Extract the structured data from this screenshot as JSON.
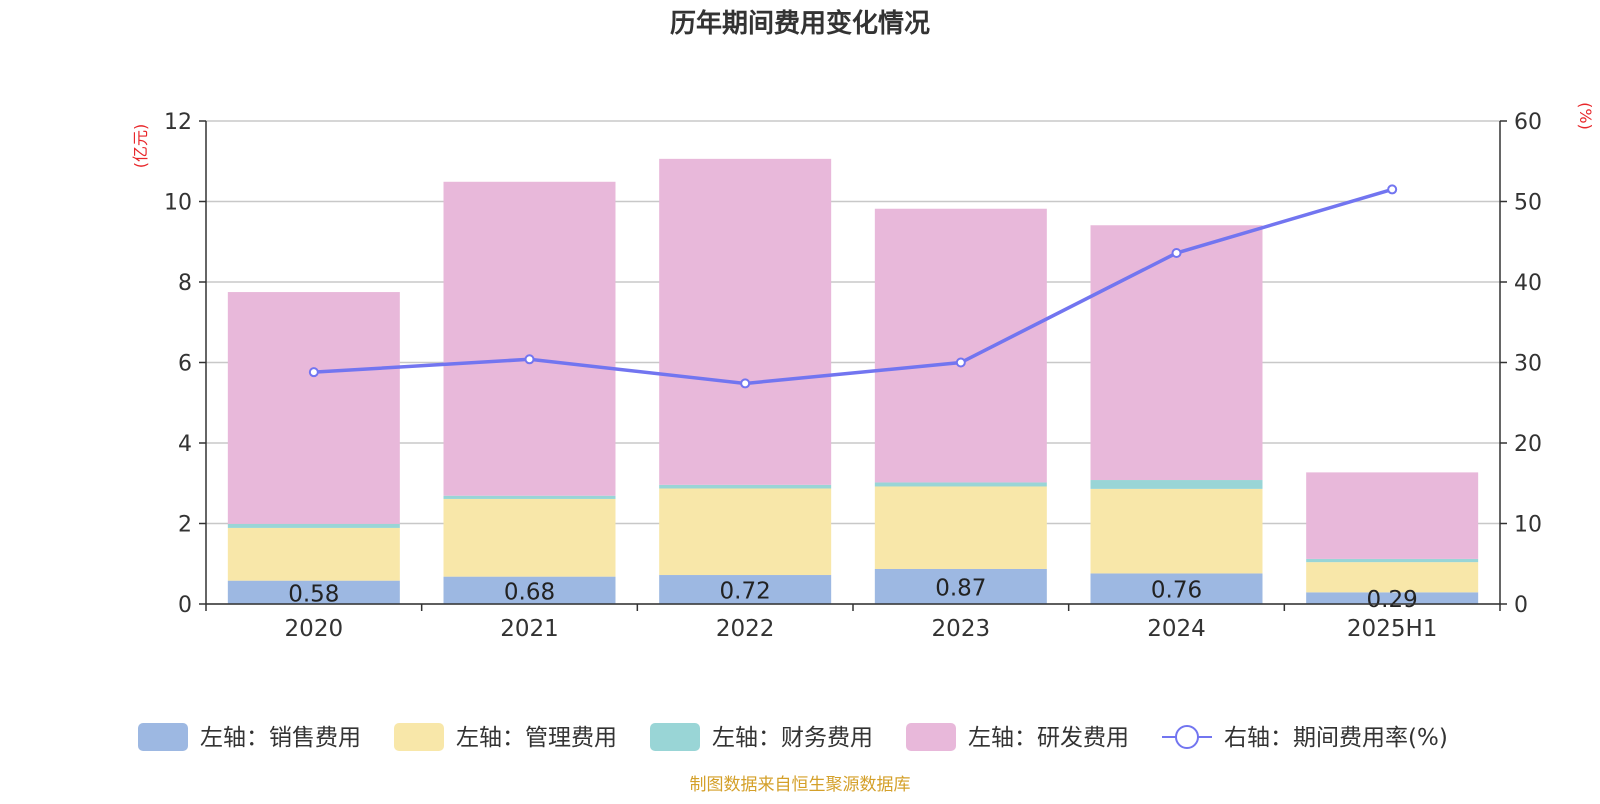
{
  "chart_data": {
    "type": "bar",
    "title": "历年期间费用变化情况",
    "source": "制图数据来自恒生聚源数据库",
    "categories": [
      "2020",
      "2021",
      "2022",
      "2023",
      "2024",
      "2025H1"
    ],
    "left_axis": {
      "unit": "(亿元)",
      "ylim": [
        0,
        12
      ],
      "ticks": [
        "0",
        "2",
        "4",
        "6",
        "8",
        "10",
        "12"
      ]
    },
    "right_axis": {
      "unit": "(%)",
      "ylim": [
        0,
        60
      ],
      "ticks": [
        "0",
        "10",
        "20",
        "30",
        "40",
        "50",
        "60"
      ]
    },
    "grid": true,
    "legend_position": "bottom",
    "series": [
      {
        "name": "左轴：销售费用",
        "axis": "left",
        "kind": "bar",
        "color": "#9db8e2",
        "values": [
          0.58,
          0.68,
          0.72,
          0.87,
          0.76,
          0.29
        ],
        "data_labels": [
          "0.58",
          "0.68",
          "0.72",
          "0.87",
          "0.76",
          "0.29"
        ]
      },
      {
        "name": "左轴：管理费用",
        "axis": "left",
        "kind": "bar",
        "color": "#f8e7a9",
        "values": [
          1.31,
          1.93,
          2.15,
          2.05,
          2.1,
          0.75
        ]
      },
      {
        "name": "左轴：财务费用",
        "axis": "left",
        "kind": "bar",
        "color": "#99d5d6",
        "values": [
          0.1,
          0.08,
          0.09,
          0.1,
          0.22,
          0.08
        ]
      },
      {
        "name": "左轴：研发费用",
        "axis": "left",
        "kind": "bar",
        "color": "#e8b8da",
        "values": [
          5.76,
          7.8,
          8.1,
          6.8,
          6.33,
          2.15
        ]
      },
      {
        "name": "右轴：期间费用率(%)",
        "axis": "right",
        "kind": "line",
        "color": "#7275f0",
        "values": [
          28.8,
          30.4,
          27.4,
          30.0,
          43.6,
          51.5
        ]
      }
    ]
  }
}
